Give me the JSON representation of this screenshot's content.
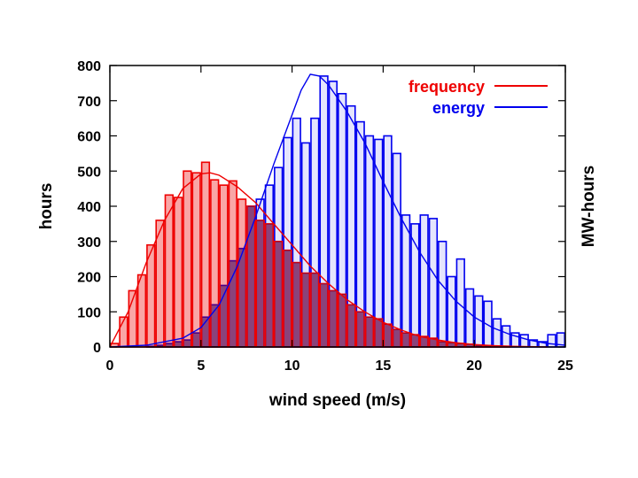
{
  "chart_data": {
    "type": "bar",
    "xlabel": "wind speed (m/s)",
    "ylabel": "hours",
    "y2label": "MW-hours",
    "xlim": [
      0,
      25
    ],
    "ylim": [
      0,
      800
    ],
    "x_ticks": [
      "0",
      "5",
      "10",
      "15",
      "20",
      "25"
    ],
    "y_ticks": [
      "0",
      "100",
      "200",
      "300",
      "400",
      "500",
      "600",
      "700",
      "800"
    ],
    "bin_width": 0.5,
    "bin_starts": [
      0,
      0.5,
      1,
      1.5,
      2,
      2.5,
      3,
      3.5,
      4,
      4.5,
      5,
      5.5,
      6,
      6.5,
      7,
      7.5,
      8,
      8.5,
      9,
      9.5,
      10,
      10.5,
      11,
      11.5,
      12,
      12.5,
      13,
      13.5,
      14,
      14.5,
      15,
      15.5,
      16,
      16.5,
      17,
      17.5,
      18,
      18.5,
      19,
      19.5,
      20,
      20.5,
      21,
      21.5,
      22,
      22.5,
      23,
      23.5,
      24,
      24.5
    ],
    "legend_position": "top-right",
    "series": [
      {
        "name": "frequency",
        "color": "#ee0000",
        "values": [
          10,
          85,
          160,
          205,
          290,
          360,
          432,
          425,
          500,
          495,
          525,
          475,
          460,
          472,
          420,
          400,
          360,
          350,
          300,
          275,
          240,
          210,
          210,
          180,
          160,
          150,
          120,
          100,
          85,
          80,
          65,
          50,
          40,
          35,
          30,
          25,
          15,
          12,
          10,
          8,
          5,
          4,
          3,
          2,
          0,
          0,
          0,
          0,
          0,
          0
        ],
        "fit_curve": [
          [
            0,
            0
          ],
          [
            1,
            100
          ],
          [
            2,
            240
          ],
          [
            3,
            360
          ],
          [
            4,
            450
          ],
          [
            5,
            492
          ],
          [
            5.5,
            495
          ],
          [
            6,
            488
          ],
          [
            7,
            455
          ],
          [
            8,
            410
          ],
          [
            9,
            350
          ],
          [
            10,
            290
          ],
          [
            11,
            230
          ],
          [
            12,
            180
          ],
          [
            13,
            135
          ],
          [
            14,
            100
          ],
          [
            15,
            70
          ],
          [
            16,
            48
          ],
          [
            17,
            30
          ],
          [
            18,
            20
          ],
          [
            19,
            12
          ],
          [
            20,
            7
          ],
          [
            21,
            4
          ],
          [
            22,
            2
          ],
          [
            23,
            1
          ],
          [
            24,
            0
          ]
        ]
      },
      {
        "name": "energy",
        "color": "#0000ee",
        "values": [
          0,
          0,
          0,
          0,
          2,
          5,
          10,
          15,
          20,
          40,
          85,
          120,
          175,
          245,
          280,
          400,
          420,
          460,
          510,
          595,
          650,
          580,
          650,
          770,
          755,
          720,
          685,
          640,
          600,
          590,
          600,
          550,
          375,
          350,
          375,
          365,
          300,
          200,
          250,
          165,
          145,
          130,
          80,
          60,
          40,
          35,
          20,
          15,
          35,
          40
        ],
        "fit_curve": [
          [
            0,
            0
          ],
          [
            2,
            5
          ],
          [
            4,
            25
          ],
          [
            5,
            55
          ],
          [
            6,
            120
          ],
          [
            7,
            230
          ],
          [
            8,
            370
          ],
          [
            9,
            520
          ],
          [
            10,
            660
          ],
          [
            10.5,
            730
          ],
          [
            11,
            775
          ],
          [
            11.5,
            770
          ],
          [
            12,
            745
          ],
          [
            13,
            670
          ],
          [
            14,
            580
          ],
          [
            15,
            470
          ],
          [
            16,
            365
          ],
          [
            17,
            270
          ],
          [
            18,
            190
          ],
          [
            19,
            130
          ],
          [
            20,
            85
          ],
          [
            21,
            55
          ],
          [
            22,
            35
          ],
          [
            23,
            20
          ],
          [
            24,
            10
          ],
          [
            25,
            5
          ]
        ]
      }
    ]
  }
}
